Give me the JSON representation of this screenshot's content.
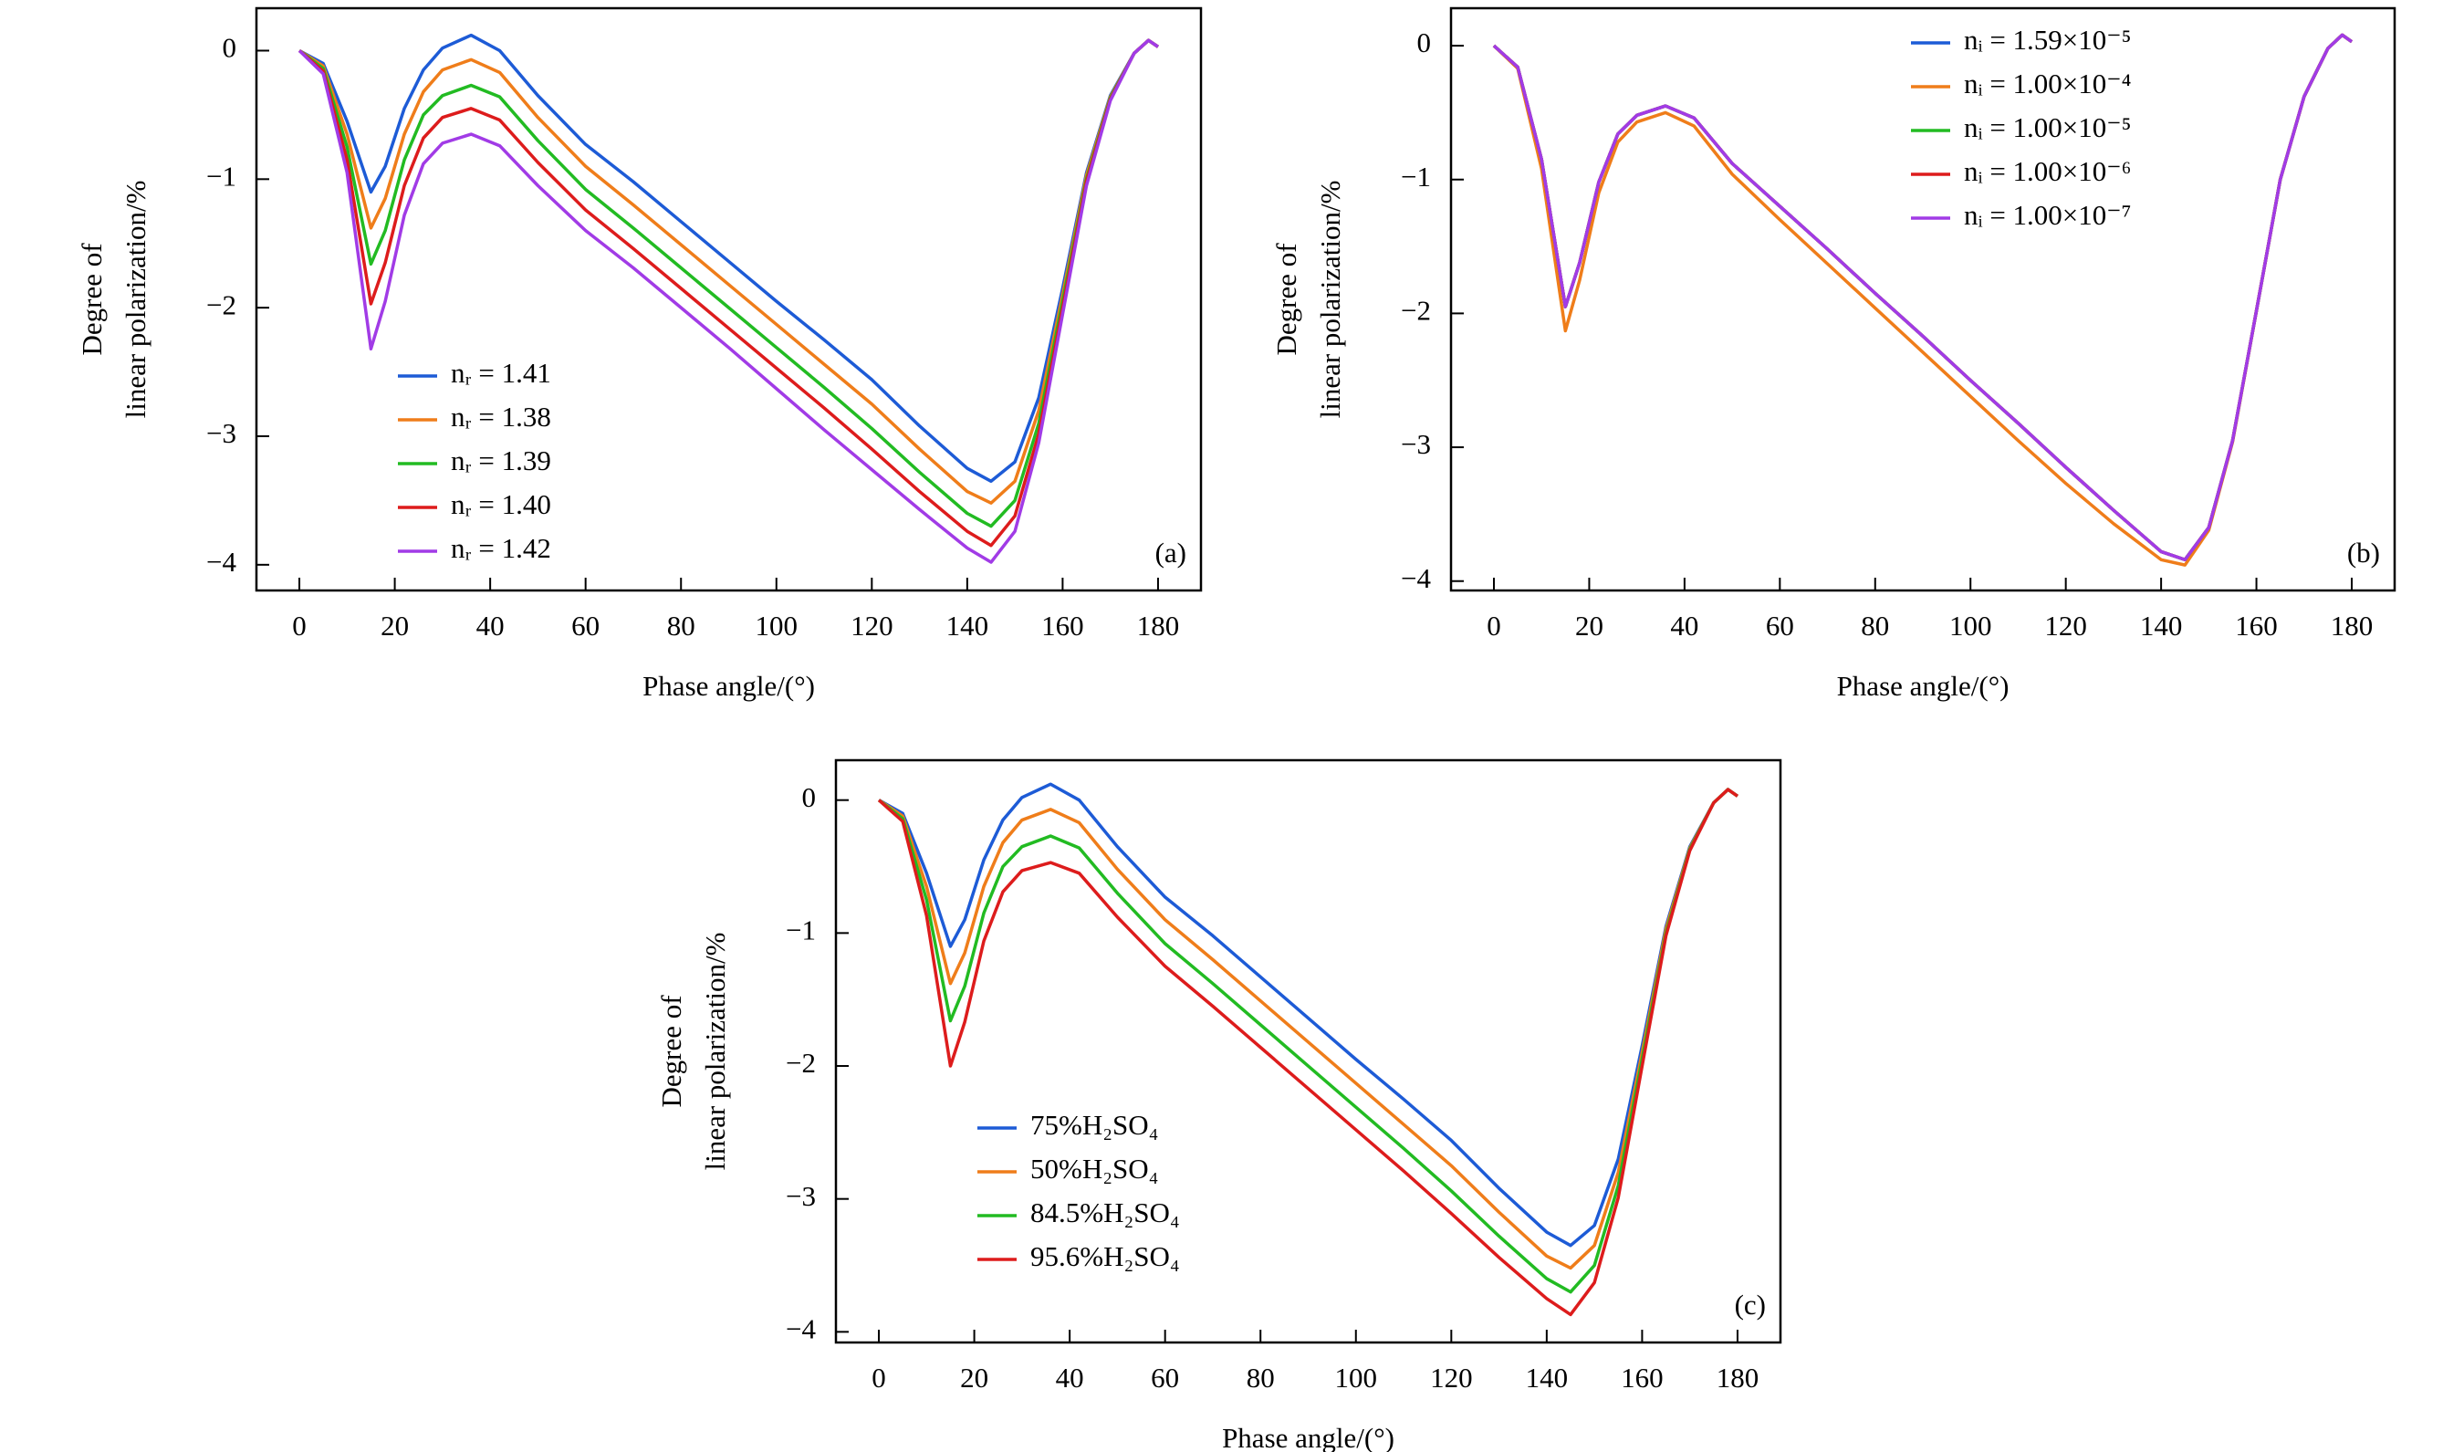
{
  "chart_data": [
    {
      "type": "line",
      "panel_label": "(a)",
      "xlabel": "Phase angle/(°)",
      "ylabel": [
        "Degree of",
        "linear polarization/%"
      ],
      "xlim": [
        -9,
        189
      ],
      "ylim": [
        -4.2,
        0.33
      ],
      "xticks": [
        0,
        20,
        40,
        60,
        80,
        100,
        120,
        140,
        160,
        180
      ],
      "yticks": [
        0,
        {
          "value": -1,
          "label": "−1"
        },
        {
          "value": -2,
          "label": "−2"
        },
        {
          "value": -3,
          "label": "−3"
        },
        {
          "value": -4,
          "label": "−4"
        }
      ],
      "legend_loc": "lower left",
      "x": [
        0,
        5,
        10,
        15,
        18,
        22,
        26,
        30,
        36,
        42,
        50,
        60,
        70,
        80,
        90,
        100,
        110,
        120,
        130,
        140,
        145,
        150,
        155,
        160,
        165,
        170,
        175,
        178,
        180
      ],
      "series": [
        {
          "name": "nᵣ = 1.41",
          "color": "#1d5bd6",
          "values": [
            0,
            -0.1,
            -0.55,
            -1.1,
            -0.9,
            -0.45,
            -0.15,
            0.02,
            0.12,
            0.0,
            -0.35,
            -0.73,
            -1.02,
            -1.33,
            -1.64,
            -1.95,
            -2.25,
            -2.56,
            -2.92,
            -3.25,
            -3.35,
            -3.2,
            -2.7,
            -1.85,
            -0.95,
            -0.35,
            -0.02,
            0.08,
            0.03
          ]
        },
        {
          "name": "nᵣ = 1.38",
          "color": "#ef7d1a",
          "values": [
            0,
            -0.12,
            -0.65,
            -1.38,
            -1.15,
            -0.65,
            -0.32,
            -0.15,
            -0.07,
            -0.17,
            -0.52,
            -0.9,
            -1.2,
            -1.51,
            -1.82,
            -2.13,
            -2.44,
            -2.75,
            -3.1,
            -3.43,
            -3.52,
            -3.35,
            -2.8,
            -1.9,
            -0.97,
            -0.36,
            -0.02,
            0.08,
            0.03
          ]
        },
        {
          "name": "nᵣ = 1.39",
          "color": "#22bb22",
          "values": [
            0,
            -0.14,
            -0.75,
            -1.66,
            -1.4,
            -0.85,
            -0.5,
            -0.35,
            -0.27,
            -0.36,
            -0.7,
            -1.08,
            -1.38,
            -1.69,
            -2.0,
            -2.31,
            -2.62,
            -2.94,
            -3.28,
            -3.6,
            -3.7,
            -3.5,
            -2.9,
            -1.95,
            -1.0,
            -0.37,
            -0.02,
            0.08,
            0.03
          ]
        },
        {
          "name": "nᵣ = 1.40",
          "color": "#dd1c1c",
          "values": [
            0,
            -0.16,
            -0.85,
            -1.97,
            -1.65,
            -1.05,
            -0.68,
            -0.52,
            -0.45,
            -0.54,
            -0.87,
            -1.24,
            -1.54,
            -1.85,
            -2.16,
            -2.47,
            -2.78,
            -3.1,
            -3.43,
            -3.74,
            -3.85,
            -3.62,
            -2.98,
            -2.0,
            -1.02,
            -0.38,
            -0.02,
            0.08,
            0.03
          ]
        },
        {
          "name": "nᵣ = 1.42",
          "color": "#a13be6",
          "values": [
            0,
            -0.18,
            -0.95,
            -2.32,
            -1.95,
            -1.28,
            -0.88,
            -0.72,
            -0.65,
            -0.74,
            -1.05,
            -1.4,
            -1.69,
            -2.0,
            -2.31,
            -2.63,
            -2.95,
            -3.26,
            -3.57,
            -3.87,
            -3.98,
            -3.74,
            -3.05,
            -2.05,
            -1.05,
            -0.39,
            -0.02,
            0.08,
            0.03
          ]
        }
      ]
    },
    {
      "type": "line",
      "panel_label": "(b)",
      "xlabel": "Phase angle/(°)",
      "ylabel": [
        "Degree of",
        "linear polarization/%"
      ],
      "xlim": [
        -9,
        189
      ],
      "ylim": [
        -4.07,
        0.28
      ],
      "xticks": [
        0,
        20,
        40,
        60,
        80,
        100,
        120,
        140,
        160,
        180
      ],
      "yticks": [
        0,
        {
          "value": -1,
          "label": "−1"
        },
        {
          "value": -2,
          "label": "−2"
        },
        {
          "value": -3,
          "label": "−3"
        },
        {
          "value": -4,
          "label": "−4"
        }
      ],
      "legend_loc": "upper right",
      "x": [
        0,
        5,
        10,
        15,
        18,
        22,
        26,
        30,
        36,
        42,
        50,
        60,
        70,
        80,
        90,
        100,
        110,
        120,
        130,
        140,
        145,
        150,
        155,
        160,
        165,
        170,
        175,
        178,
        180
      ],
      "series": [
        {
          "name": "nᵢ = 1.59×10⁻⁵",
          "color": "#1d5bd6",
          "values": [
            0,
            -0.16,
            -0.85,
            -1.95,
            -1.62,
            -1.02,
            -0.66,
            -0.52,
            -0.45,
            -0.54,
            -0.88,
            -1.2,
            -1.52,
            -1.85,
            -2.17,
            -2.5,
            -2.82,
            -3.15,
            -3.47,
            -3.78,
            -3.84,
            -3.6,
            -2.95,
            -1.98,
            -1.0,
            -0.38,
            -0.02,
            0.08,
            0.03
          ]
        },
        {
          "name": "nᵢ = 1.00×10⁻⁴",
          "color": "#ef7d1a",
          "values": [
            0,
            -0.17,
            -0.92,
            -2.13,
            -1.75,
            -1.1,
            -0.72,
            -0.57,
            -0.5,
            -0.6,
            -0.96,
            -1.3,
            -1.63,
            -1.96,
            -2.29,
            -2.62,
            -2.95,
            -3.27,
            -3.57,
            -3.84,
            -3.88,
            -3.62,
            -2.96,
            -1.98,
            -1.0,
            -0.38,
            -0.02,
            0.08,
            0.03
          ]
        },
        {
          "name": "nᵢ = 1.00×10⁻⁵",
          "color": "#22bb22",
          "values": [
            0,
            -0.16,
            -0.85,
            -1.95,
            -1.62,
            -1.02,
            -0.66,
            -0.52,
            -0.45,
            -0.54,
            -0.88,
            -1.2,
            -1.52,
            -1.85,
            -2.17,
            -2.5,
            -2.82,
            -3.15,
            -3.47,
            -3.78,
            -3.84,
            -3.6,
            -2.95,
            -1.98,
            -1.0,
            -0.38,
            -0.02,
            0.08,
            0.03
          ]
        },
        {
          "name": "nᵢ = 1.00×10⁻⁶",
          "color": "#dd1c1c",
          "values": [
            0,
            -0.16,
            -0.85,
            -1.95,
            -1.62,
            -1.02,
            -0.66,
            -0.52,
            -0.45,
            -0.54,
            -0.88,
            -1.2,
            -1.52,
            -1.85,
            -2.17,
            -2.5,
            -2.82,
            -3.15,
            -3.47,
            -3.78,
            -3.84,
            -3.6,
            -2.95,
            -1.98,
            -1.0,
            -0.38,
            -0.02,
            0.08,
            0.03
          ]
        },
        {
          "name": "nᵢ = 1.00×10⁻⁷",
          "color": "#a13be6",
          "values": [
            0,
            -0.16,
            -0.85,
            -1.95,
            -1.62,
            -1.02,
            -0.66,
            -0.52,
            -0.45,
            -0.54,
            -0.88,
            -1.2,
            -1.52,
            -1.85,
            -2.17,
            -2.5,
            -2.82,
            -3.15,
            -3.47,
            -3.78,
            -3.84,
            -3.6,
            -2.95,
            -1.98,
            -1.0,
            -0.38,
            -0.02,
            0.08,
            0.03
          ]
        }
      ]
    },
    {
      "type": "line",
      "panel_label": "(c)",
      "xlabel": "Phase angle/(°)",
      "ylabel": [
        "Degree of",
        "linear polarization/%"
      ],
      "xlim": [
        -9,
        189
      ],
      "ylim": [
        -4.08,
        0.3
      ],
      "xticks": [
        0,
        20,
        40,
        60,
        80,
        100,
        120,
        140,
        160,
        180
      ],
      "yticks": [
        0,
        {
          "value": -1,
          "label": "−1"
        },
        {
          "value": -2,
          "label": "−2"
        },
        {
          "value": -3,
          "label": "−3"
        },
        {
          "value": -4,
          "label": "−4"
        }
      ],
      "legend_loc": "lower left",
      "x": [
        0,
        5,
        10,
        15,
        18,
        22,
        26,
        30,
        36,
        42,
        50,
        60,
        70,
        80,
        90,
        100,
        110,
        120,
        130,
        140,
        145,
        150,
        155,
        160,
        165,
        170,
        175,
        178,
        180
      ],
      "series": [
        {
          "name": "75%H₂SO₄",
          "color": "#1d5bd6",
          "values": [
            0,
            -0.1,
            -0.55,
            -1.1,
            -0.9,
            -0.45,
            -0.15,
            0.02,
            0.12,
            0.0,
            -0.35,
            -0.73,
            -1.02,
            -1.33,
            -1.64,
            -1.95,
            -2.25,
            -2.56,
            -2.92,
            -3.25,
            -3.35,
            -3.2,
            -2.7,
            -1.85,
            -0.95,
            -0.35,
            -0.02,
            0.08,
            0.03
          ]
        },
        {
          "name": "50%H₂SO₄",
          "color": "#ef7d1a",
          "values": [
            0,
            -0.12,
            -0.65,
            -1.38,
            -1.15,
            -0.65,
            -0.32,
            -0.15,
            -0.07,
            -0.17,
            -0.52,
            -0.9,
            -1.2,
            -1.51,
            -1.82,
            -2.13,
            -2.44,
            -2.75,
            -3.1,
            -3.43,
            -3.52,
            -3.35,
            -2.8,
            -1.9,
            -0.97,
            -0.36,
            -0.02,
            0.08,
            0.03
          ]
        },
        {
          "name": "84.5%H₂SO₄",
          "color": "#22bb22",
          "values": [
            0,
            -0.14,
            -0.75,
            -1.66,
            -1.4,
            -0.85,
            -0.5,
            -0.35,
            -0.27,
            -0.36,
            -0.7,
            -1.08,
            -1.38,
            -1.69,
            -2.0,
            -2.31,
            -2.62,
            -2.94,
            -3.28,
            -3.6,
            -3.7,
            -3.5,
            -2.9,
            -1.95,
            -1.0,
            -0.37,
            -0.02,
            0.08,
            0.03
          ]
        },
        {
          "name": "95.6%H₂SO₄",
          "color": "#dd1c1c",
          "values": [
            0,
            -0.16,
            -0.87,
            -2.0,
            -1.67,
            -1.06,
            -0.69,
            -0.53,
            -0.47,
            -0.55,
            -0.88,
            -1.25,
            -1.55,
            -1.86,
            -2.17,
            -2.48,
            -2.79,
            -3.11,
            -3.44,
            -3.75,
            -3.87,
            -3.63,
            -2.99,
            -2.0,
            -1.02,
            -0.38,
            -0.02,
            0.08,
            0.03
          ]
        }
      ]
    }
  ]
}
